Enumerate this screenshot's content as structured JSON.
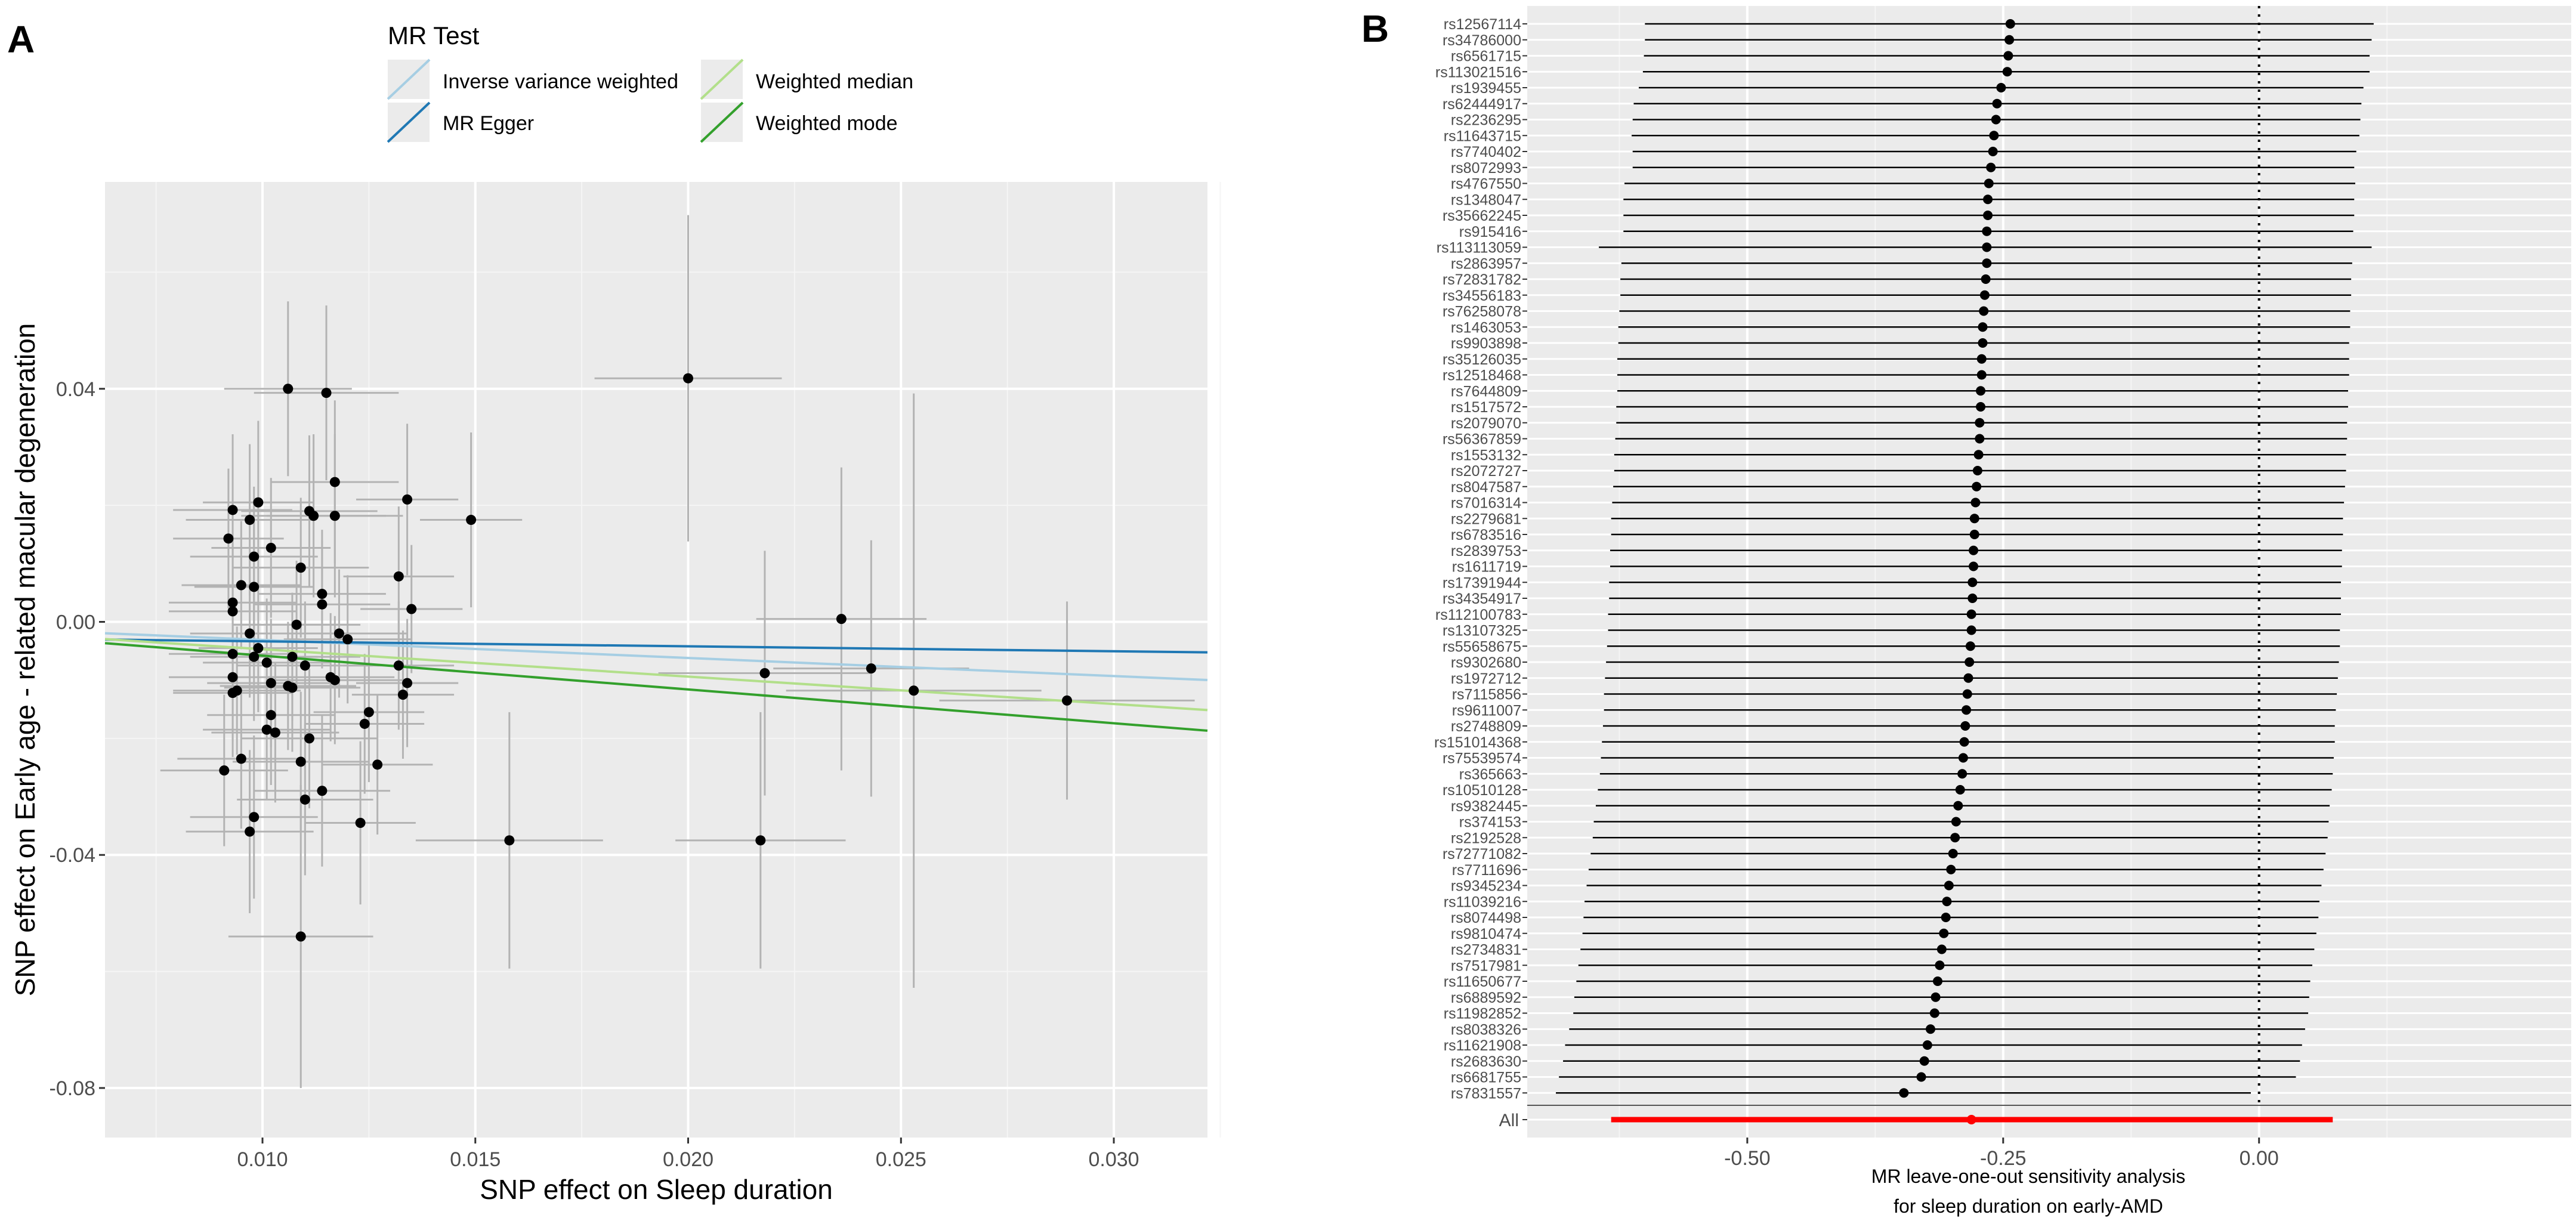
{
  "chart_data": [
    {
      "type": "scatter",
      "panel_label": "A",
      "xlabel": "SNP effect on Sleep duration",
      "ylabel": "SNP effect on Early age - related macular degeneration",
      "xlim": [
        0.0063,
        0.0322
      ],
      "ylim": [
        -0.0885,
        0.0755
      ],
      "x_ticks": [
        0.01,
        0.015,
        0.02,
        0.025,
        0.03
      ],
      "x_tick_labels": [
        "0.010",
        "0.015",
        "0.020",
        "0.025",
        "0.030"
      ],
      "y_ticks": [
        0.04,
        0.0,
        -0.04,
        -0.08
      ],
      "y_tick_labels": [
        "0.04",
        "0.00",
        "-0.04",
        "-0.08"
      ],
      "grid": true,
      "legend": {
        "title": "MR Test",
        "placement": "top",
        "entries": [
          "Inverse variance weighted",
          "MR Egger",
          "Weighted median",
          "Weighted mode"
        ]
      },
      "lines": [
        {
          "name": "Inverse variance weighted",
          "color": "#a6cee3",
          "intercept": 0.0,
          "slope": -0.31
        },
        {
          "name": "MR Egger",
          "color": "#1f78b4",
          "intercept": -0.0025,
          "slope": -0.085
        },
        {
          "name": "Weighted median",
          "color": "#b2df8a",
          "intercept": 0.0,
          "slope": -0.47
        },
        {
          "name": "Weighted mode",
          "color": "#33a02c",
          "intercept": 0.0,
          "slope": -0.58
        }
      ],
      "points": [
        {
          "x": 0.0106,
          "y": 0.04,
          "xse": 0.0015,
          "yse": 0.015
        },
        {
          "x": 0.0115,
          "y": 0.0393,
          "xse": 0.0017,
          "yse": 0.015
        },
        {
          "x": 0.02,
          "y": 0.0418,
          "xse": 0.0022,
          "yse": 0.028
        },
        {
          "x": 0.0117,
          "y": 0.024,
          "xse": 0.0015,
          "yse": 0.014
        },
        {
          "x": 0.0134,
          "y": 0.021,
          "xse": 0.0012,
          "yse": 0.013
        },
        {
          "x": 0.0099,
          "y": 0.0205,
          "xse": 0.0013,
          "yse": 0.014
        },
        {
          "x": 0.0093,
          "y": 0.0192,
          "xse": 0.0014,
          "yse": 0.013
        },
        {
          "x": 0.0111,
          "y": 0.019,
          "xse": 0.0016,
          "yse": 0.013
        },
        {
          "x": 0.0112,
          "y": 0.0182,
          "xse": 0.0017,
          "yse": 0.014
        },
        {
          "x": 0.0117,
          "y": 0.0182,
          "xse": 0.0016,
          "yse": 0.014
        },
        {
          "x": 0.0149,
          "y": 0.0175,
          "xse": 0.0012,
          "yse": 0.015
        },
        {
          "x": 0.0097,
          "y": 0.0175,
          "xse": 0.0015,
          "yse": 0.013
        },
        {
          "x": 0.0092,
          "y": 0.0143,
          "xse": 0.0013,
          "yse": 0.012
        },
        {
          "x": 0.0102,
          "y": 0.0127,
          "xse": 0.0014,
          "yse": 0.012
        },
        {
          "x": 0.0098,
          "y": 0.0112,
          "xse": 0.0015,
          "yse": 0.012
        },
        {
          "x": 0.0109,
          "y": 0.0093,
          "xse": 0.0016,
          "yse": 0.012
        },
        {
          "x": 0.0132,
          "y": 0.0078,
          "xse": 0.0013,
          "yse": 0.012
        },
        {
          "x": 0.0095,
          "y": 0.0063,
          "xse": 0.0014,
          "yse": 0.011
        },
        {
          "x": 0.0098,
          "y": 0.006,
          "xse": 0.0014,
          "yse": 0.011
        },
        {
          "x": 0.0114,
          "y": 0.0048,
          "xse": 0.0015,
          "yse": 0.011
        },
        {
          "x": 0.0093,
          "y": 0.0033,
          "xse": 0.0015,
          "yse": 0.011
        },
        {
          "x": 0.0114,
          "y": 0.003,
          "xse": 0.0016,
          "yse": 0.011
        },
        {
          "x": 0.0135,
          "y": 0.0022,
          "xse": 0.0012,
          "yse": 0.011
        },
        {
          "x": 0.0093,
          "y": 0.0018,
          "xse": 0.0015,
          "yse": 0.011
        },
        {
          "x": 0.0236,
          "y": 0.0005,
          "xse": 0.002,
          "yse": 0.026
        },
        {
          "x": 0.0108,
          "y": -0.0005,
          "xse": 0.0015,
          "yse": 0.011
        },
        {
          "x": 0.0097,
          "y": -0.002,
          "xse": 0.0014,
          "yse": 0.011
        },
        {
          "x": 0.0118,
          "y": -0.002,
          "xse": 0.0016,
          "yse": 0.011
        },
        {
          "x": 0.012,
          "y": -0.003,
          "xse": 0.0015,
          "yse": 0.011
        },
        {
          "x": 0.0099,
          "y": -0.0045,
          "xse": 0.0014,
          "yse": 0.011
        },
        {
          "x": 0.0093,
          "y": -0.0055,
          "xse": 0.0015,
          "yse": 0.011
        },
        {
          "x": 0.0107,
          "y": -0.006,
          "xse": 0.0016,
          "yse": 0.011
        },
        {
          "x": 0.0098,
          "y": -0.006,
          "xse": 0.0015,
          "yse": 0.011
        },
        {
          "x": 0.0101,
          "y": -0.007,
          "xse": 0.0015,
          "yse": 0.011
        },
        {
          "x": 0.011,
          "y": -0.0075,
          "xse": 0.0016,
          "yse": 0.011
        },
        {
          "x": 0.0132,
          "y": -0.0075,
          "xse": 0.0013,
          "yse": 0.011
        },
        {
          "x": 0.0243,
          "y": -0.008,
          "xse": 0.0023,
          "yse": 0.022
        },
        {
          "x": 0.0218,
          "y": -0.0088,
          "xse": 0.0025,
          "yse": 0.021
        },
        {
          "x": 0.0093,
          "y": -0.0095,
          "xse": 0.0015,
          "yse": 0.011
        },
        {
          "x": 0.0116,
          "y": -0.0095,
          "xse": 0.0015,
          "yse": 0.011
        },
        {
          "x": 0.0117,
          "y": -0.01,
          "xse": 0.0016,
          "yse": 0.011
        },
        {
          "x": 0.0134,
          "y": -0.0105,
          "xse": 0.0012,
          "yse": 0.011
        },
        {
          "x": 0.0102,
          "y": -0.0105,
          "xse": 0.0015,
          "yse": 0.011
        },
        {
          "x": 0.0106,
          "y": -0.011,
          "xse": 0.0016,
          "yse": 0.011
        },
        {
          "x": 0.0107,
          "y": -0.0113,
          "xse": 0.0016,
          "yse": 0.011
        },
        {
          "x": 0.0094,
          "y": -0.0118,
          "xse": 0.0015,
          "yse": 0.011
        },
        {
          "x": 0.0253,
          "y": -0.0118,
          "xse": 0.003,
          "yse": 0.051
        },
        {
          "x": 0.0093,
          "y": -0.0122,
          "xse": 0.0014,
          "yse": 0.011
        },
        {
          "x": 0.0133,
          "y": -0.0125,
          "xse": 0.0012,
          "yse": 0.011
        },
        {
          "x": 0.0289,
          "y": -0.0135,
          "xse": 0.003,
          "yse": 0.017
        },
        {
          "x": 0.0125,
          "y": -0.0155,
          "xse": 0.0013,
          "yse": 0.012
        },
        {
          "x": 0.0102,
          "y": -0.016,
          "xse": 0.0015,
          "yse": 0.012
        },
        {
          "x": 0.0124,
          "y": -0.0175,
          "xse": 0.0014,
          "yse": 0.012
        },
        {
          "x": 0.0101,
          "y": -0.0185,
          "xse": 0.0015,
          "yse": 0.012
        },
        {
          "x": 0.0103,
          "y": -0.019,
          "xse": 0.0015,
          "yse": 0.012
        },
        {
          "x": 0.0111,
          "y": -0.02,
          "xse": 0.0016,
          "yse": 0.012
        },
        {
          "x": 0.0095,
          "y": -0.0235,
          "xse": 0.0015,
          "yse": 0.012
        },
        {
          "x": 0.0109,
          "y": -0.024,
          "xse": 0.0016,
          "yse": 0.012
        },
        {
          "x": 0.0127,
          "y": -0.0245,
          "xse": 0.0013,
          "yse": 0.012
        },
        {
          "x": 0.0091,
          "y": -0.0255,
          "xse": 0.0015,
          "yse": 0.013
        },
        {
          "x": 0.0114,
          "y": -0.029,
          "xse": 0.0016,
          "yse": 0.013
        },
        {
          "x": 0.011,
          "y": -0.0305,
          "xse": 0.0016,
          "yse": 0.013
        },
        {
          "x": 0.0098,
          "y": -0.0335,
          "xse": 0.0015,
          "yse": 0.014
        },
        {
          "x": 0.0123,
          "y": -0.0345,
          "xse": 0.0013,
          "yse": 0.014
        },
        {
          "x": 0.0097,
          "y": -0.036,
          "xse": 0.0015,
          "yse": 0.014
        },
        {
          "x": 0.0158,
          "y": -0.0375,
          "xse": 0.0022,
          "yse": 0.022
        },
        {
          "x": 0.0217,
          "y": -0.0375,
          "xse": 0.002,
          "yse": 0.022
        },
        {
          "x": 0.0109,
          "y": -0.054,
          "xse": 0.0017,
          "yse": 0.026
        }
      ]
    },
    {
      "type": "forest",
      "panel_label": "B",
      "xlabel": "MR leave-one-out sensitivity analysis",
      "xlabel2": "for sleep duration on early-AMD",
      "xlim": [
        -0.715,
        0.305
      ],
      "x_ticks": [
        -0.5,
        -0.25,
        0.0
      ],
      "x_tick_labels": [
        "-0.50",
        "-0.25",
        "0.00"
      ],
      "reference_line": 0.0,
      "rows": [
        {
          "snp": "rs12567114",
          "b": -0.243,
          "lo": -0.6,
          "hi": 0.112
        },
        {
          "snp": "rs34786000",
          "b": -0.244,
          "lo": -0.6,
          "hi": 0.11
        },
        {
          "snp": "rs6561715",
          "b": -0.245,
          "lo": -0.601,
          "hi": 0.108
        },
        {
          "snp": "rs113021516",
          "b": -0.246,
          "lo": -0.602,
          "hi": 0.108
        },
        {
          "snp": "rs1939455",
          "b": -0.252,
          "lo": -0.606,
          "hi": 0.102
        },
        {
          "snp": "rs62444917",
          "b": -0.256,
          "lo": -0.611,
          "hi": 0.1
        },
        {
          "snp": "rs2236295",
          "b": -0.257,
          "lo": -0.612,
          "hi": 0.099
        },
        {
          "snp": "rs11643715",
          "b": -0.259,
          "lo": -0.613,
          "hi": 0.098
        },
        {
          "snp": "rs7740402",
          "b": -0.26,
          "lo": -0.612,
          "hi": 0.095
        },
        {
          "snp": "rs8072993",
          "b": -0.262,
          "lo": -0.612,
          "hi": 0.093
        },
        {
          "snp": "rs4767550",
          "b": -0.264,
          "lo": -0.62,
          "hi": 0.094
        },
        {
          "snp": "rs1348047",
          "b": -0.265,
          "lo": -0.621,
          "hi": 0.093
        },
        {
          "snp": "rs35662245",
          "b": -0.265,
          "lo": -0.621,
          "hi": 0.093
        },
        {
          "snp": "rs915416",
          "b": -0.266,
          "lo": -0.621,
          "hi": 0.092
        },
        {
          "snp": "rs113113059",
          "b": -0.266,
          "lo": -0.645,
          "hi": 0.11
        },
        {
          "snp": "rs2863957",
          "b": -0.266,
          "lo": -0.623,
          "hi": 0.091
        },
        {
          "snp": "rs72831782",
          "b": -0.267,
          "lo": -0.624,
          "hi": 0.09
        },
        {
          "snp": "rs34556183",
          "b": -0.268,
          "lo": -0.624,
          "hi": 0.09
        },
        {
          "snp": "rs76258078",
          "b": -0.269,
          "lo": -0.625,
          "hi": 0.089
        },
        {
          "snp": "rs1463053",
          "b": -0.27,
          "lo": -0.626,
          "hi": 0.089
        },
        {
          "snp": "rs9903898",
          "b": -0.27,
          "lo": -0.626,
          "hi": 0.088
        },
        {
          "snp": "rs35126035",
          "b": -0.271,
          "lo": -0.627,
          "hi": 0.088
        },
        {
          "snp": "rs12518468",
          "b": -0.271,
          "lo": -0.627,
          "hi": 0.088
        },
        {
          "snp": "rs7644809",
          "b": -0.272,
          "lo": -0.627,
          "hi": 0.087
        },
        {
          "snp": "rs1517572",
          "b": -0.272,
          "lo": -0.628,
          "hi": 0.087
        },
        {
          "snp": "rs2079070",
          "b": -0.273,
          "lo": -0.628,
          "hi": 0.086
        },
        {
          "snp": "rs56367859",
          "b": -0.273,
          "lo": -0.629,
          "hi": 0.086
        },
        {
          "snp": "rs1553132",
          "b": -0.274,
          "lo": -0.63,
          "hi": 0.085
        },
        {
          "snp": "rs2072727",
          "b": -0.275,
          "lo": -0.63,
          "hi": 0.085
        },
        {
          "snp": "rs8047587",
          "b": -0.276,
          "lo": -0.631,
          "hi": 0.084
        },
        {
          "snp": "rs7016314",
          "b": -0.277,
          "lo": -0.632,
          "hi": 0.083
        },
        {
          "snp": "rs2279681",
          "b": -0.278,
          "lo": -0.633,
          "hi": 0.082
        },
        {
          "snp": "rs6783516",
          "b": -0.278,
          "lo": -0.633,
          "hi": 0.082
        },
        {
          "snp": "rs2839753",
          "b": -0.279,
          "lo": -0.634,
          "hi": 0.081
        },
        {
          "snp": "rs1611719",
          "b": -0.279,
          "lo": -0.634,
          "hi": 0.081
        },
        {
          "snp": "rs17391944",
          "b": -0.28,
          "lo": -0.635,
          "hi": 0.08
        },
        {
          "snp": "rs34354917",
          "b": -0.28,
          "lo": -0.635,
          "hi": 0.08
        },
        {
          "snp": "rs112100783",
          "b": -0.281,
          "lo": -0.636,
          "hi": 0.08
        },
        {
          "snp": "rs13107325",
          "b": -0.281,
          "lo": -0.636,
          "hi": 0.079
        },
        {
          "snp": "rs55658675",
          "b": -0.282,
          "lo": -0.637,
          "hi": 0.079
        },
        {
          "snp": "rs9302680",
          "b": -0.283,
          "lo": -0.638,
          "hi": 0.078
        },
        {
          "snp": "rs1972712",
          "b": -0.284,
          "lo": -0.639,
          "hi": 0.077
        },
        {
          "snp": "rs7115856",
          "b": -0.285,
          "lo": -0.64,
          "hi": 0.076
        },
        {
          "snp": "rs9611007",
          "b": -0.286,
          "lo": -0.64,
          "hi": 0.075
        },
        {
          "snp": "rs2748809",
          "b": -0.287,
          "lo": -0.641,
          "hi": 0.074
        },
        {
          "snp": "rs151014368",
          "b": -0.288,
          "lo": -0.642,
          "hi": 0.074
        },
        {
          "snp": "rs75539574",
          "b": -0.289,
          "lo": -0.643,
          "hi": 0.073
        },
        {
          "snp": "rs365663",
          "b": -0.29,
          "lo": -0.644,
          "hi": 0.072
        },
        {
          "snp": "rs10510128",
          "b": -0.292,
          "lo": -0.646,
          "hi": 0.071
        },
        {
          "snp": "rs9382445",
          "b": -0.294,
          "lo": -0.648,
          "hi": 0.069
        },
        {
          "snp": "rs374153",
          "b": -0.296,
          "lo": -0.65,
          "hi": 0.068
        },
        {
          "snp": "rs2192528",
          "b": -0.297,
          "lo": -0.651,
          "hi": 0.067
        },
        {
          "snp": "rs72771082",
          "b": -0.299,
          "lo": -0.653,
          "hi": 0.065
        },
        {
          "snp": "rs7711696",
          "b": -0.301,
          "lo": -0.655,
          "hi": 0.063
        },
        {
          "snp": "rs9345234",
          "b": -0.303,
          "lo": -0.657,
          "hi": 0.061
        },
        {
          "snp": "rs11039216",
          "b": -0.305,
          "lo": -0.659,
          "hi": 0.059
        },
        {
          "snp": "rs8074498",
          "b": -0.306,
          "lo": -0.66,
          "hi": 0.058
        },
        {
          "snp": "rs9810474",
          "b": -0.308,
          "lo": -0.661,
          "hi": 0.056
        },
        {
          "snp": "rs2734831",
          "b": -0.31,
          "lo": -0.663,
          "hi": 0.054
        },
        {
          "snp": "rs7517981",
          "b": -0.312,
          "lo": -0.665,
          "hi": 0.052
        },
        {
          "snp": "rs11650677",
          "b": -0.314,
          "lo": -0.667,
          "hi": 0.05
        },
        {
          "snp": "rs6889592",
          "b": -0.316,
          "lo": -0.669,
          "hi": 0.049
        },
        {
          "snp": "rs11982852",
          "b": -0.317,
          "lo": -0.67,
          "hi": 0.048
        },
        {
          "snp": "rs8038326",
          "b": -0.321,
          "lo": -0.674,
          "hi": 0.045
        },
        {
          "snp": "rs11621908",
          "b": -0.324,
          "lo": -0.678,
          "hi": 0.042
        },
        {
          "snp": "rs2683630",
          "b": -0.327,
          "lo": -0.68,
          "hi": 0.04
        },
        {
          "snp": "rs6681755",
          "b": -0.33,
          "lo": -0.684,
          "hi": 0.036
        },
        {
          "snp": "rs7831557",
          "b": -0.347,
          "lo": -0.687,
          "hi": -0.008
        }
      ],
      "overall": {
        "snp": "All",
        "b": -0.281,
        "lo": -0.633,
        "hi": 0.072,
        "color": "#ff0000"
      }
    }
  ]
}
